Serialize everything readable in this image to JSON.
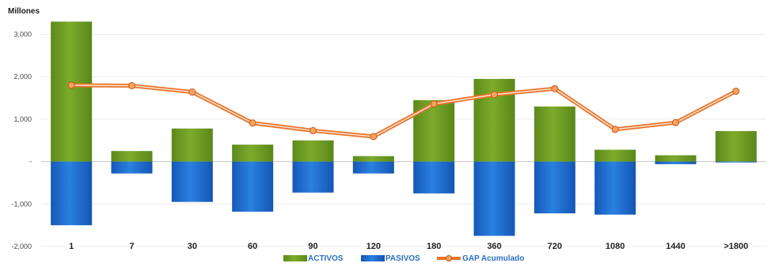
{
  "chart_data": {
    "type": "bar",
    "unit_label": "Millones",
    "categories": [
      "1",
      "7",
      "30",
      "60",
      "90",
      "120",
      "180",
      "360",
      "720",
      "1080",
      "1440",
      ">1800"
    ],
    "series": [
      {
        "name": "ACTIVOS",
        "kind": "bar",
        "color": "#6b9a22",
        "values": [
          3300,
          250,
          780,
          400,
          500,
          130,
          1450,
          1950,
          1300,
          280,
          150,
          720
        ]
      },
      {
        "name": "PASIVOS",
        "kind": "bar",
        "color": "#1e6fd0",
        "values": [
          -1500,
          -280,
          -950,
          -1180,
          -730,
          -280,
          -750,
          -1750,
          -1220,
          -1250,
          -60,
          -20
        ]
      },
      {
        "name": "GAP Acumulado",
        "kind": "line",
        "color": "#e8742a",
        "values": [
          1800,
          1790,
          1640,
          910,
          730,
          590,
          1360,
          1580,
          1720,
          760,
          920,
          1660
        ]
      }
    ],
    "yticks": [
      "3,000",
      "2,000",
      "1,000",
      "-",
      "-1,000",
      "-2,000"
    ],
    "ytick_values": [
      3000,
      2000,
      1000,
      0,
      -1000,
      -2000
    ],
    "ylim": [
      -2000,
      3400
    ],
    "legend_position": "bottom",
    "grid": true
  }
}
